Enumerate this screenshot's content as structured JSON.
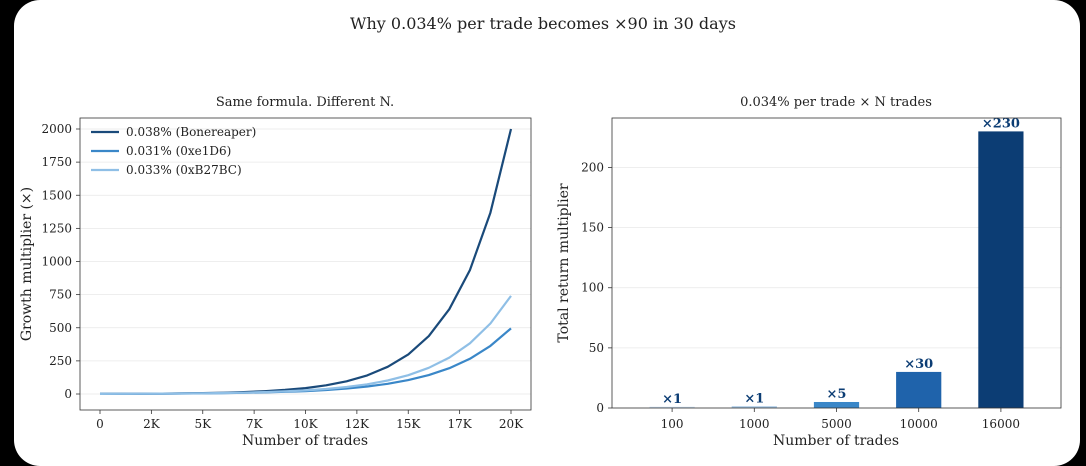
{
  "suptitle": "Why 0.034% per trade becomes ×90 in 30 days",
  "chart_data": [
    {
      "type": "line",
      "title": "Same formula. Different N.",
      "xlabel": "Number of trades",
      "ylabel": "Growth multiplier (×)",
      "xlim": [
        0,
        20000
      ],
      "ylim": [
        0,
        2000
      ],
      "x_ticks": [
        0,
        2500,
        5000,
        7500,
        10000,
        12500,
        15000,
        17500,
        20000
      ],
      "x_tick_labels": [
        "0",
        "2K",
        "5K",
        "7K",
        "10K",
        "12K",
        "15K",
        "17K",
        "20K"
      ],
      "y_ticks": [
        0,
        250,
        500,
        750,
        1000,
        1250,
        1500,
        1750,
        2000
      ],
      "y_tick_labels": [
        "0",
        "250",
        "500",
        "750",
        "1000",
        "1250",
        "1500",
        "1750",
        "2000"
      ],
      "grid": true,
      "legend_position": "top-left",
      "x": [
        0,
        1000,
        2000,
        3000,
        4000,
        5000,
        6000,
        7000,
        8000,
        9000,
        10000,
        11000,
        12000,
        13000,
        14000,
        15000,
        16000,
        17000,
        18000,
        19000,
        20000
      ],
      "series": [
        {
          "name": "0.038% (Bonereaper)",
          "color": "#1a4a7a",
          "values": [
            1,
            1.46,
            2.14,
            3.13,
            4.57,
            6.69,
            9.78,
            14.3,
            20.9,
            30.6,
            44.7,
            65.4,
            95.6,
            140,
            205,
            299,
            437,
            640,
            935,
            1368,
            2000
          ]
        },
        {
          "name": "0.031% (0xe1D6)",
          "color": "#3a87c8",
          "values": [
            1,
            1.36,
            1.86,
            2.53,
            3.44,
            4.7,
            6.41,
            8.74,
            11.9,
            16.3,
            22.2,
            30.3,
            41.3,
            56.3,
            76.8,
            105,
            143,
            195,
            266,
            363,
            495
          ]
        },
        {
          "name": "0.033% (0xB27BC)",
          "color": "#8fbfe6",
          "values": [
            1,
            1.39,
            1.94,
            2.7,
            3.75,
            5.22,
            7.26,
            10.1,
            14.1,
            19.6,
            27.3,
            37.9,
            52.8,
            73.4,
            102,
            142,
            198,
            275,
            383,
            532,
            740
          ]
        }
      ]
    },
    {
      "type": "bar",
      "title": "0.034% per trade × N trades",
      "xlabel": "Number of trades",
      "ylabel": "Total return multiplier",
      "categories": [
        "100",
        "1000",
        "5000",
        "10000",
        "16000"
      ],
      "values": [
        1,
        1.4,
        5,
        30,
        230
      ],
      "data_labels": [
        "×1",
        "×1",
        "×5",
        "×30",
        "×230"
      ],
      "colors": [
        "#c9dcef",
        "#9fc4e4",
        "#3a87c8",
        "#1f63ab",
        "#0c3d74"
      ],
      "ylim": [
        0,
        232
      ],
      "y_ticks": [
        0,
        50,
        100,
        150,
        200
      ],
      "y_tick_labels": [
        "0",
        "50",
        "100",
        "150",
        "200"
      ],
      "grid": true
    }
  ]
}
